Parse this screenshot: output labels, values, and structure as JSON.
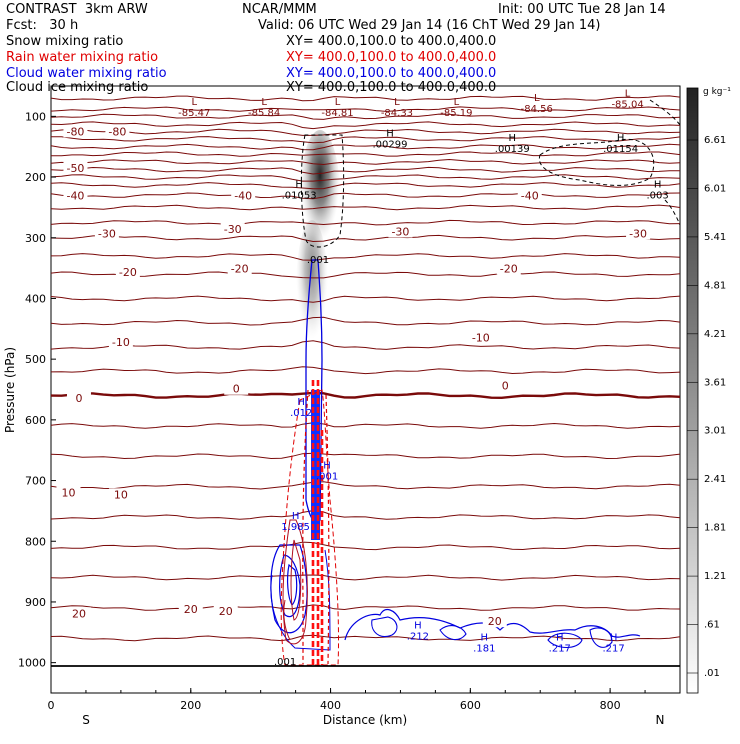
{
  "header": {
    "title": "CONTRAST  3km ARW",
    "org": "NCAR/MMM",
    "init": "Init: 00 UTC Tue 28 Jan 14",
    "fcst": "Fcst:   30 h",
    "valid": "Valid: 06 UTC Wed 29 Jan 14 (16 ChT Wed 29 Jan 14)"
  },
  "fields": [
    {
      "name": "Snow mixing ratio",
      "xy": "XY= 400.0,100.0 to 400.0,400.0",
      "color": "#000000"
    },
    {
      "name": "Rain water mixing ratio",
      "xy": "XY= 400.0,100.0 to 400.0,400.0",
      "color": "#e00000"
    },
    {
      "name": "Cloud water mixing ratio",
      "xy": "XY= 400.0,100.0 to 400.0,400.0",
      "color": "#0000e0"
    },
    {
      "name": "Cloud ice mixing ratio",
      "xy": "XY= 400.0,100.0 to 400.0,400.0",
      "color": "#000000"
    }
  ],
  "chart_data": {
    "type": "contour",
    "xlabel": "Distance (km)",
    "ylabel": "Pressure (hPa)",
    "xlim": [
      0,
      900
    ],
    "ylim": [
      1050,
      50
    ],
    "x_ticks": [
      0,
      200,
      400,
      600,
      800
    ],
    "y_ticks": [
      100,
      200,
      300,
      400,
      500,
      600,
      700,
      800,
      900,
      1000
    ],
    "x_end_labels": {
      "left": "S",
      "right": "N"
    },
    "colorbar": {
      "unit": "g kg⁻¹",
      "ticks": [
        "6.61",
        "6.01",
        "5.41",
        "4.81",
        "4.21",
        "3.61",
        "3.01",
        "2.41",
        "1.81",
        "1.21",
        ".61",
        ".01"
      ]
    },
    "temperature_contours": {
      "color": "#7a0a0a",
      "labels": [
        {
          "text": "-80",
          "x": 35,
          "p": 128
        },
        {
          "text": "-80",
          "x": 95,
          "p": 128
        },
        {
          "text": "-50",
          "x": 35,
          "p": 188
        },
        {
          "text": "-40",
          "x": 35,
          "p": 234
        },
        {
          "text": "-40",
          "x": 275,
          "p": 234
        },
        {
          "text": "-40",
          "x": 685,
          "p": 234
        },
        {
          "text": "-30",
          "x": 80,
          "p": 296
        },
        {
          "text": "-30",
          "x": 260,
          "p": 289
        },
        {
          "text": "-30",
          "x": 500,
          "p": 293
        },
        {
          "text": "-30",
          "x": 840,
          "p": 296
        },
        {
          "text": "-20",
          "x": 110,
          "p": 360
        },
        {
          "text": "-20",
          "x": 270,
          "p": 354
        },
        {
          "text": "-20",
          "x": 655,
          "p": 354
        },
        {
          "text": "-10",
          "x": 100,
          "p": 475
        },
        {
          "text": "-10",
          "x": 615,
          "p": 468
        },
        {
          "text": "0",
          "x": 40,
          "p": 567
        },
        {
          "text": "0",
          "x": 265,
          "p": 552
        },
        {
          "text": "0",
          "x": 650,
          "p": 547
        },
        {
          "text": "10",
          "x": 25,
          "p": 723
        },
        {
          "text": "10",
          "x": 100,
          "p": 726
        },
        {
          "text": "20",
          "x": 40,
          "p": 922
        },
        {
          "text": "20",
          "x": 200,
          "p": 915
        },
        {
          "text": "20",
          "x": 250,
          "p": 918
        },
        {
          "text": "20",
          "x": 635,
          "p": 935
        }
      ]
    },
    "extrema": [
      {
        "mark": "L",
        "value": "-85.47",
        "x": 205,
        "p": 98
      },
      {
        "mark": "L",
        "value": "-85.84",
        "x": 305,
        "p": 98
      },
      {
        "mark": "L",
        "value": "-84.81",
        "x": 410,
        "p": 98
      },
      {
        "mark": "L",
        "value": "-84.33",
        "x": 495,
        "p": 98
      },
      {
        "mark": "L",
        "value": "-85.19",
        "x": 580,
        "p": 98
      },
      {
        "mark": "L",
        "value": "-84.56",
        "x": 695,
        "p": 91
      },
      {
        "mark": "L",
        "value": "-85.04",
        "x": 825,
        "p": 84
      },
      {
        "mark": "H",
        "value": ".00299",
        "x": 485,
        "p": 150
      },
      {
        "mark": "H",
        "value": ".00139",
        "x": 660,
        "p": 157
      },
      {
        "mark": "H",
        "value": ".01154",
        "x": 815,
        "p": 157
      },
      {
        "mark": "H",
        "value": ".01053",
        "x": 355,
        "p": 234
      },
      {
        "mark": "H",
        "value": ".003",
        "x": 868,
        "p": 234
      },
      {
        "mark": "",
        "value": ".001",
        "x": 382,
        "p": 340
      },
      {
        "mark": "H",
        "value": ".012",
        "x": 358,
        "p": 592
      },
      {
        "mark": "H",
        "value": ".001",
        "x": 395,
        "p": 697
      },
      {
        "mark": "H",
        "value": "1.985",
        "x": 350,
        "p": 780
      },
      {
        "mark": "H",
        "value": ".212",
        "x": 525,
        "p": 960
      },
      {
        "mark": "H",
        "value": ".181",
        "x": 620,
        "p": 980
      },
      {
        "mark": "H",
        "value": ".217",
        "x": 728,
        "p": 980
      },
      {
        "mark": "H",
        "value": ".217",
        "x": 805,
        "p": 980
      },
      {
        "mark": "",
        "value": ".001",
        "x": 335,
        "p": 1002
      }
    ]
  }
}
